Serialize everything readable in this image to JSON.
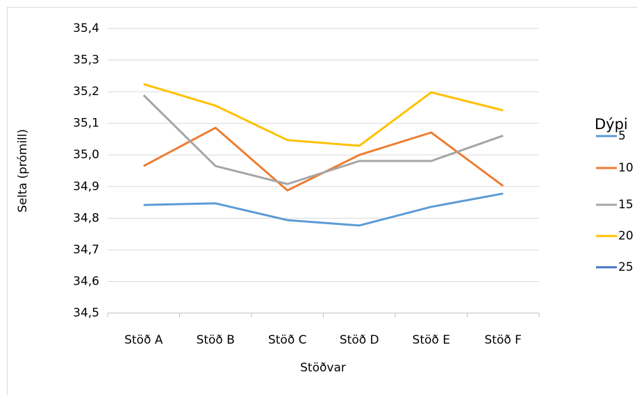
{
  "chart_data": {
    "type": "line",
    "y_label": "Selta (prómill)",
    "x_label": "Stöðvar",
    "legend_title": "Dýpi",
    "legend": "right",
    "grid": true,
    "categories": [
      "Stöð A",
      "Stöð B",
      "Stöð C",
      "Stöð D",
      "Stöð E",
      "Stöð F"
    ],
    "series": [
      {
        "name": "5",
        "color": "#5b9bd5",
        "values": [
          34.842,
          34.847,
          34.794,
          34.777,
          34.836,
          34.878
        ]
      },
      {
        "name": "10",
        "color": "#ed7d31",
        "values": [
          34.965,
          35.086,
          34.888,
          35.0,
          35.071,
          34.902
        ]
      },
      {
        "name": "15",
        "color": "#a5a5a5",
        "values": [
          35.189,
          34.965,
          34.908,
          34.981,
          34.981,
          35.061
        ]
      },
      {
        "name": "20",
        "color": "#ffc000",
        "values": [
          35.224,
          35.156,
          35.047,
          35.029,
          35.198,
          35.141
        ]
      },
      {
        "name": "25",
        "color": "#4472c4",
        "values": [
          null,
          null,
          null,
          null,
          null,
          null
        ]
      }
    ],
    "ylim": [
      34.5,
      35.4
    ],
    "yticks": [
      {
        "value": 34.5,
        "label": "34,5"
      },
      {
        "value": 34.6,
        "label": "34,6"
      },
      {
        "value": 34.7,
        "label": "34,7"
      },
      {
        "value": 34.8,
        "label": "34,8"
      },
      {
        "value": 34.9,
        "label": "34,9"
      },
      {
        "value": 35.0,
        "label": "35,0"
      },
      {
        "value": 35.1,
        "label": "35,1"
      },
      {
        "value": 35.2,
        "label": "35,2"
      },
      {
        "value": 35.3,
        "label": "35,3"
      },
      {
        "value": 35.4,
        "label": "35,4"
      }
    ]
  }
}
